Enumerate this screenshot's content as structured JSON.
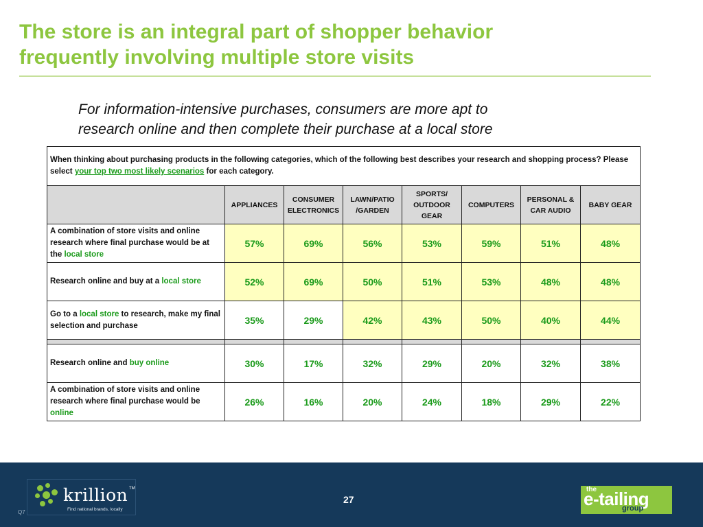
{
  "slide": {
    "title_line1": "The store is an integral part of shopper behavior",
    "title_line2": "frequently involving multiple store visits",
    "subtitle_line1": "For information-intensive purchases, consumers are more apt to",
    "subtitle_line2": "research online and then complete their purchase at a local store"
  },
  "table": {
    "question_pre": "When thinking about purchasing products in the following categories, which of the following best describes your research and shopping process? Please select ",
    "question_em": "your top two most likely scenarios",
    "question_post": " for each category.",
    "columns": [
      {
        "l1": "APPLIANCES",
        "l2": "",
        "l3": ""
      },
      {
        "l1": "CONSUMER",
        "l2": "ELECTRONICS",
        "l3": ""
      },
      {
        "l1": "LAWN/PATIO",
        "l2": "/GARDEN",
        "l3": ""
      },
      {
        "l1": "SPORTS/",
        "l2": "OUTDOOR",
        "l3": "GEAR"
      },
      {
        "l1": "COMPUTERS",
        "l2": "",
        "l3": ""
      },
      {
        "l1": "PERSONAL &",
        "l2": "CAR AUDIO",
        "l3": ""
      },
      {
        "l1": "BABY GEAR",
        "l2": "",
        "l3": ""
      }
    ],
    "rows": [
      {
        "label_a": "A combination of store visits and online research where final purchase would be at the ",
        "label_g": "local store",
        "label_b": "",
        "values": [
          "57%",
          "69%",
          "56%",
          "53%",
          "59%",
          "51%",
          "48%"
        ]
      },
      {
        "label_a": "Research online and buy at a ",
        "label_g": "local store",
        "label_b": "",
        "values": [
          "52%",
          "69%",
          "50%",
          "51%",
          "53%",
          "48%",
          "48%"
        ]
      },
      {
        "label_a": "Go to a ",
        "label_g": "local store",
        "label_b": " to research, make my final selection and purchase",
        "values": [
          "35%",
          "29%",
          "42%",
          "43%",
          "50%",
          "40%",
          "44%"
        ]
      },
      {
        "label_a": "Research online and ",
        "label_g": "buy online",
        "label_b": "",
        "values": [
          "30%",
          "17%",
          "32%",
          "29%",
          "20%",
          "32%",
          "38%"
        ]
      },
      {
        "label_a": "A combination of store visits and online research where final purchase would be ",
        "label_g": "online",
        "label_b": "",
        "values": [
          "26%",
          "16%",
          "20%",
          "24%",
          "18%",
          "29%",
          "22%"
        ]
      }
    ],
    "colors": {
      "highlight": "#ffffc0",
      "header_fill": "#d9d9d9",
      "value_green": "#1a9a1a"
    }
  },
  "footer": {
    "page_number": "27",
    "question_ref": "Q7",
    "krillion": {
      "name": "krillion",
      "tm": "TM",
      "tagline": "Find national brands, locally"
    },
    "etailing": {
      "the": "the",
      "name": "e-tailing",
      "group": "group"
    },
    "background": "#15395a"
  }
}
